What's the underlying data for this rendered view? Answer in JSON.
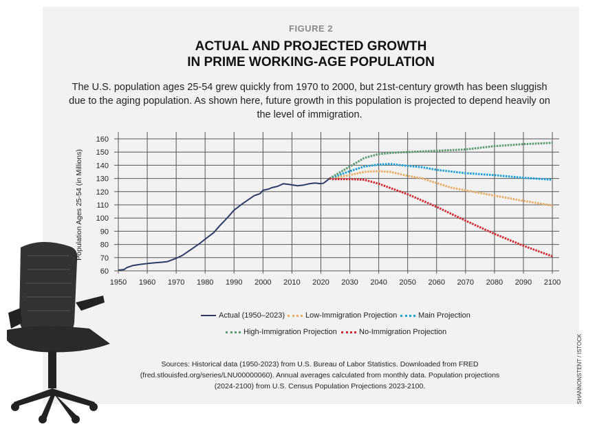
{
  "figure_label": "FIGURE 2",
  "title_line1": "ACTUAL AND PROJECTED GROWTH",
  "title_line2": "IN PRIME WORKING-AGE POPULATION",
  "subtitle": "The U.S. population ages 25-54 grew quickly from 1970 to 2000, but 21st-century growth has been sluggish due to the aging population. As shown here, future growth in this population is projected to depend heavily on the level of immigration.",
  "sources": "Sources: Historical data (1950-2023) from U.S. Bureau of Labor Statistics. Downloaded from FRED (fred.stlouisfed.org/series/LNU00000060). Annual averages calculated from monthly data. Population projections (2024-2100) from U.S. Census Population Projections 2023-2100.",
  "photo_credit": "SHANNONSTENT / ISTOCK",
  "chart_data": {
    "type": "line",
    "title": "Actual and Projected Growth in Prime Working-Age Population",
    "xlabel": "",
    "ylabel": "Population Ages 25-54 (in Millions)",
    "xlim": [
      1950,
      2100
    ],
    "ylim": [
      60,
      160
    ],
    "xticks": [
      "1950",
      "1960",
      "1970",
      "1980",
      "1990",
      "2000",
      "2010",
      "2020",
      "2030",
      "2040",
      "2050",
      "2060",
      "2070",
      "2080",
      "2090",
      "2100"
    ],
    "yticks": [
      "60",
      "70",
      "80",
      "90",
      "100",
      "110",
      "120",
      "130",
      "140",
      "150",
      "160"
    ],
    "grid": true,
    "legend_position": "bottom",
    "series": [
      {
        "name": "Actual (1950–2023)",
        "color": "#2b3a67",
        "style": "solid",
        "x": [
          1950,
          1952,
          1953,
          1955,
          1958,
          1960,
          1962,
          1965,
          1967,
          1970,
          1972,
          1975,
          1978,
          1980,
          1983,
          1985,
          1988,
          1990,
          1993,
          1995,
          1997,
          1999,
          2000,
          2002,
          2003,
          2005,
          2007,
          2009,
          2012,
          2014,
          2016,
          2018,
          2020,
          2021,
          2023
        ],
        "y": [
          60.5,
          61,
          62.5,
          64,
          65,
          65.5,
          66,
          66.5,
          67,
          69.5,
          71.5,
          76,
          80.5,
          84,
          89,
          94,
          101,
          106,
          111,
          114,
          117,
          118.5,
          121,
          122,
          123,
          124,
          126,
          125.5,
          124.5,
          125,
          126,
          126.5,
          126,
          126.5,
          130
        ]
      },
      {
        "name": "Low-Immigration Projection",
        "color": "#e8ad63",
        "style": "dotted",
        "x": [
          2023,
          2030,
          2035,
          2040,
          2044,
          2050,
          2055,
          2060,
          2065,
          2070,
          2080,
          2090,
          2100
        ],
        "y": [
          130,
          132.5,
          135,
          135.5,
          135,
          132,
          130,
          126.5,
          123,
          121,
          117,
          113,
          109.5
        ]
      },
      {
        "name": "Main Projection",
        "color": "#1ea0d6",
        "style": "dotted",
        "x": [
          2023,
          2030,
          2035,
          2040,
          2044,
          2050,
          2055,
          2060,
          2070,
          2080,
          2090,
          2100
        ],
        "y": [
          130,
          135.5,
          139,
          140.5,
          141,
          139.5,
          138.5,
          136.5,
          134,
          132.5,
          130.5,
          129
        ]
      },
      {
        "name": "High-Immigration Projection",
        "color": "#5a9a72",
        "style": "dotted",
        "x": [
          2023,
          2030,
          2035,
          2040,
          2045,
          2050,
          2060,
          2070,
          2080,
          2090,
          2100
        ],
        "y": [
          130,
          139,
          145.5,
          148.5,
          149.5,
          150,
          151,
          152,
          154.5,
          156,
          157
        ]
      },
      {
        "name": "No-Immigration Projection",
        "color": "#d0262f",
        "style": "dotted",
        "x": [
          2023,
          2024,
          2030,
          2035,
          2040,
          2045,
          2050,
          2060,
          2070,
          2080,
          2090,
          2100
        ],
        "y": [
          130,
          129.5,
          129.5,
          129,
          126,
          122,
          118,
          108.5,
          98,
          88,
          79,
          71
        ]
      }
    ]
  }
}
